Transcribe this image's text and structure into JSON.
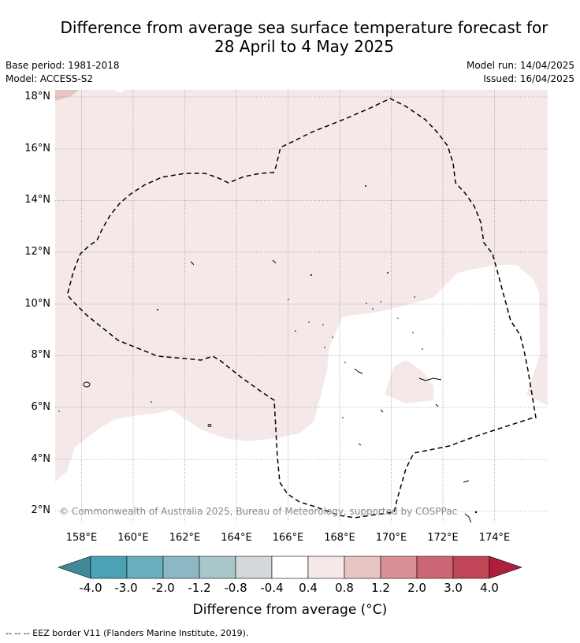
{
  "title_line1": "Difference from average sea surface temperature forecast for",
  "title_line2": "28 April to 4 May 2025",
  "base_period": "Base period: 1981-2018",
  "model": "Model: ACCESS-S2",
  "model_run": "Model run: 14/04/2025",
  "issued": "Issued: 16/04/2025",
  "copyright": "© Commonwealth of Australia 2025, Bureau of Meteorology, supported by COSPPac",
  "colorbar_title": "Difference from average (°C)",
  "footnote": "-- -- -- EEZ border V11 (Flanders Marine Institute, 2019).",
  "lon_labels": [
    "158°E",
    "160°E",
    "162°E",
    "164°E",
    "166°E",
    "168°E",
    "170°E",
    "172°E",
    "174°E"
  ],
  "lat_labels": [
    "18°N",
    "16°N",
    "14°N",
    "12°N",
    "10°N",
    "8°N",
    "6°N",
    "4°N",
    "2°N"
  ],
  "colorbar": {
    "labels": [
      "-4.0",
      "-3.0",
      "-2.0",
      "-1.2",
      "-0.8",
      "-0.4",
      "0.4",
      "0.8",
      "1.2",
      "2.0",
      "3.0",
      "4.0"
    ],
    "colors": [
      "#3f8a96",
      "#4aa3b5",
      "#6aafbf",
      "#8cb8c4",
      "#a9c6cb",
      "#d3d8da",
      "#ffffff",
      "#f6e8e8",
      "#e8c4c3",
      "#da8f97",
      "#cd6674",
      "#c04556",
      "#b01e3e"
    ]
  },
  "legend": {
    "eez_border": "EEZ border V11 (Flanders Marine Institute, 2019)"
  }
}
